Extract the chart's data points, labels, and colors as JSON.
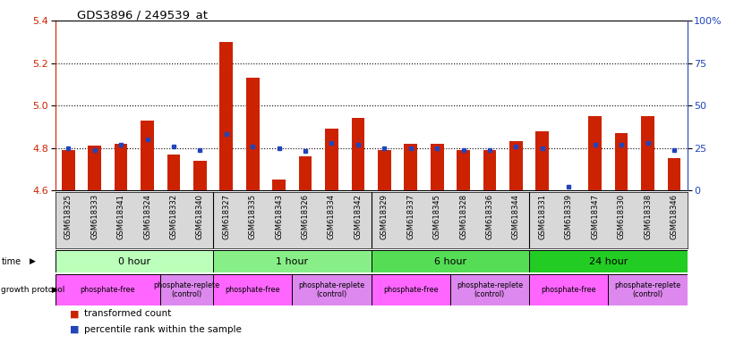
{
  "title": "GDS3896 / 249539_at",
  "samples": [
    "GSM618325",
    "GSM618333",
    "GSM618341",
    "GSM618324",
    "GSM618332",
    "GSM618340",
    "GSM618327",
    "GSM618335",
    "GSM618343",
    "GSM618326",
    "GSM618334",
    "GSM618342",
    "GSM618329",
    "GSM618337",
    "GSM618345",
    "GSM618328",
    "GSM618336",
    "GSM618344",
    "GSM618331",
    "GSM618339",
    "GSM618347",
    "GSM618330",
    "GSM618338",
    "GSM618346"
  ],
  "transformed_counts": [
    4.79,
    4.81,
    4.82,
    4.93,
    4.77,
    4.74,
    5.3,
    5.13,
    4.65,
    4.76,
    4.89,
    4.94,
    4.79,
    4.82,
    4.82,
    4.79,
    4.79,
    4.83,
    4.88,
    4.6,
    4.95,
    4.87,
    4.95,
    4.75
  ],
  "percentile_ranks": [
    25,
    24,
    27,
    30,
    26,
    24,
    33,
    26,
    25,
    23,
    28,
    27,
    25,
    25,
    25,
    24,
    24,
    26,
    25,
    2,
    27,
    27,
    28,
    24
  ],
  "time_groups": [
    {
      "label": "0 hour",
      "start": 0,
      "end": 6
    },
    {
      "label": "1 hour",
      "start": 6,
      "end": 12
    },
    {
      "label": "6 hour",
      "start": 12,
      "end": 18
    },
    {
      "label": "24 hour",
      "start": 18,
      "end": 24
    }
  ],
  "time_colors": [
    "#bbffbb",
    "#88ee88",
    "#55dd55",
    "#22cc22"
  ],
  "protocol_groups": [
    {
      "label": "phosphate-free",
      "start": 0,
      "end": 4
    },
    {
      "label": "phosphate-replete\n(control)",
      "start": 4,
      "end": 6
    },
    {
      "label": "phosphate-free",
      "start": 6,
      "end": 9
    },
    {
      "label": "phosphate-replete\n(control)",
      "start": 9,
      "end": 12
    },
    {
      "label": "phosphate-free",
      "start": 12,
      "end": 15
    },
    {
      "label": "phosphate-replete\n(control)",
      "start": 15,
      "end": 18
    },
    {
      "label": "phosphate-free",
      "start": 18,
      "end": 21
    },
    {
      "label": "phosphate-replete\n(control)",
      "start": 21,
      "end": 24
    }
  ],
  "proto_colors": [
    "#ff66ff",
    "#dd88ee",
    "#ff66ff",
    "#dd88ee",
    "#ff66ff",
    "#dd88ee",
    "#ff66ff",
    "#dd88ee"
  ],
  "ymin": 4.6,
  "ymax": 5.4,
  "yticks_left": [
    4.6,
    4.8,
    5.0,
    5.2,
    5.4
  ],
  "yticks_right": [
    0,
    25,
    50,
    75,
    100
  ],
  "ytick_right_labels": [
    "0",
    "25",
    "50",
    "75",
    "100%"
  ],
  "dotted_lines": [
    4.8,
    5.0,
    5.2
  ],
  "bar_color": "#cc2200",
  "percentile_color": "#2244bb",
  "bar_width": 0.5
}
